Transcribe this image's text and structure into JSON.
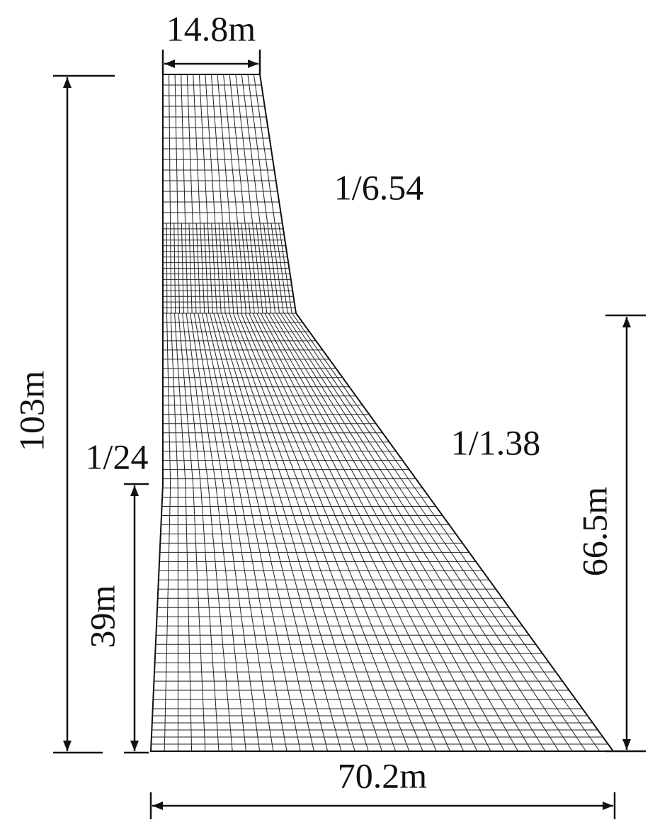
{
  "dimensions": {
    "crest_width": "14.8m",
    "total_height": "103m",
    "upstream_slope_height": "39m",
    "downstream_slope_height": "66.5m",
    "base_width": "70.2m"
  },
  "slopes": {
    "upper_downstream": "1/6.54",
    "upstream": "1/24",
    "lower_downstream": "1/1.38"
  }
}
